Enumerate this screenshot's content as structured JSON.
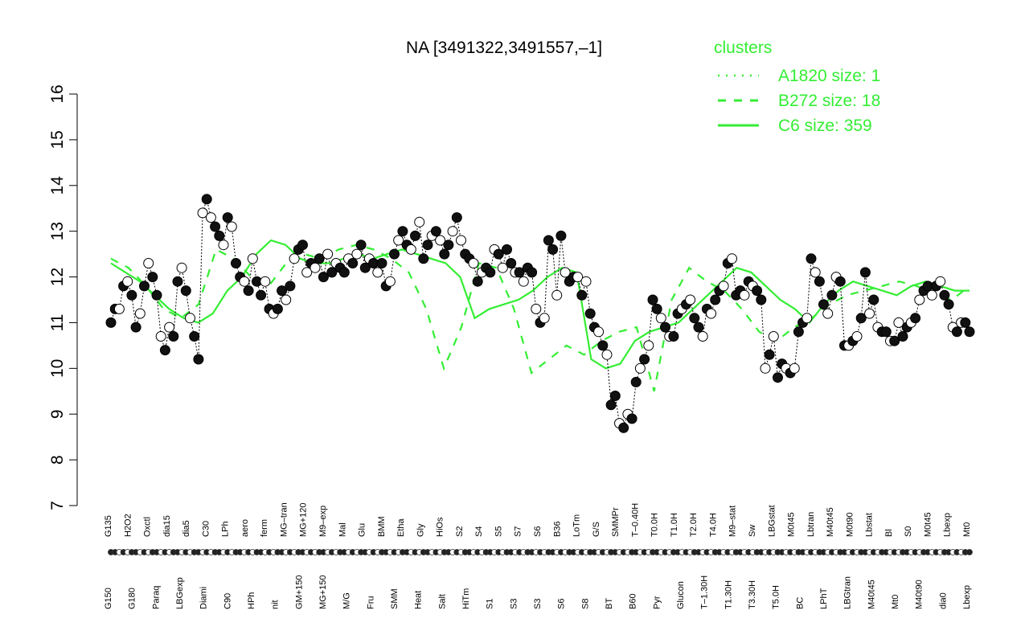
{
  "chart_data": {
    "type": "line",
    "title": "NA [3491322,3491557,–1]",
    "ylim": [
      7,
      16
    ],
    "y_ticks": [
      7,
      8,
      9,
      10,
      11,
      12,
      13,
      14,
      15,
      16
    ],
    "legend": {
      "title": "clusters",
      "placement": "top-right",
      "color": "#33ee33",
      "entries": [
        {
          "label": "A1820 size: 1",
          "style": "dotted"
        },
        {
          "label": "B272 size: 18",
          "style": "dashed"
        },
        {
          "label": "C6 size: 359",
          "style": "solid"
        }
      ]
    },
    "point_colors": {
      "filled": "#111111",
      "open": "#ffffff",
      "line": "#33ee33"
    },
    "x_tick_labels_top": [
      "G135",
      "H2O2",
      "Oxctl",
      "dia15",
      "dia5",
      "C30",
      "LPh",
      "aero",
      "ferm",
      "MG–tran",
      "MG+120",
      "M9–exp",
      "Mal",
      "Glu",
      "BMM",
      "Etha",
      "Gly",
      "HiOs",
      "S2",
      "S4",
      "S5",
      "S7",
      "S6",
      "B36",
      "LoTm",
      "G/S",
      "SMMPr",
      "T–0.40H",
      "T0.0H",
      "T1.0H",
      "T2.0H",
      "T4.0H",
      "M9–stat",
      "Sw",
      "LBGstat",
      "M0t45",
      "Lbtran",
      "M40t45",
      "M0t90",
      "Lbstat",
      "Bl",
      "S0",
      "M0t45",
      "Lbexp",
      "Mt0"
    ],
    "x_tick_labels_bottom": [
      "G150",
      "G180",
      "Paraq",
      "LBGexp",
      "Diami",
      "C90",
      "HPh",
      "nit",
      "GM+150",
      "MG+150",
      "M/G",
      "Fru",
      "SMM",
      "Heat",
      "Salt",
      "HiTm",
      "S1",
      "S3",
      "S3",
      "S6",
      "S8",
      "BT",
      "B60",
      "Pyr",
      "Glucon",
      "T–1.30H",
      "T1.30H",
      "T3.30H",
      "T5.0H",
      "BC",
      "LPhT",
      "LBGtran",
      "M40t45",
      "Mt0",
      "M40t90",
      "dia0",
      "Lbexp"
    ],
    "y_points": [
      11.0,
      11.3,
      11.3,
      11.8,
      11.9,
      11.6,
      10.9,
      11.2,
      11.8,
      12.3,
      12.0,
      11.6,
      10.7,
      10.4,
      10.9,
      10.7,
      11.9,
      12.2,
      11.7,
      11.1,
      10.7,
      10.2,
      13.4,
      13.7,
      13.3,
      13.1,
      12.9,
      12.7,
      13.3,
      13.1,
      12.3,
      12.0,
      11.9,
      11.7,
      12.4,
      11.9,
      11.6,
      11.9,
      11.3,
      11.2,
      11.3,
      11.7,
      11.5,
      11.8,
      12.4,
      12.6,
      12.7,
      12.1,
      12.3,
      12.2,
      12.4,
      12.0,
      12.5,
      12.1,
      12.3,
      12.2,
      12.1,
      12.4,
      12.3,
      12.5,
      12.7,
      12.2,
      12.4,
      12.3,
      12.1,
      12.3,
      11.8,
      11.9,
      12.5,
      12.8,
      13.0,
      12.7,
      12.6,
      12.9,
      13.2,
      12.4,
      12.7,
      12.9,
      13.0,
      12.8,
      12.5,
      12.7,
      13.0,
      13.3,
      12.8,
      12.5,
      12.4,
      12.3,
      11.9,
      12.1,
      12.2,
      12.1,
      12.6,
      12.5,
      12.2,
      12.6,
      12.3,
      12.1,
      12.1,
      11.9,
      12.2,
      12.1,
      11.3,
      11.0,
      11.1,
      12.8,
      12.6,
      11.6,
      12.9,
      12.1,
      11.9,
      12.0,
      12.0,
      11.6,
      11.9,
      11.2,
      10.9,
      10.8,
      10.5,
      10.3,
      9.2,
      9.4,
      8.8,
      8.7,
      9.0,
      8.9,
      9.7,
      10.0,
      10.2,
      10.5,
      11.5,
      11.3,
      11.1,
      10.9,
      10.7,
      10.7,
      11.2,
      11.3,
      11.4,
      11.5,
      11.1,
      10.9,
      10.7,
      11.3,
      11.2,
      11.5,
      11.7,
      11.8,
      12.3,
      12.4,
      11.6,
      11.7,
      11.6,
      11.9,
      11.8,
      11.7,
      11.5,
      10.0,
      10.3,
      10.7,
      9.8,
      10.1,
      10.0,
      9.9,
      10.0,
      10.8,
      11.0,
      11.1,
      12.4,
      12.1,
      11.9,
      11.4,
      11.2,
      11.6,
      12.0,
      11.9,
      10.5,
      10.5,
      10.6,
      10.7,
      11.1,
      12.1,
      11.2,
      11.5,
      10.9,
      10.8,
      10.8,
      10.6,
      10.6,
      11.0,
      10.7,
      10.9,
      11.0,
      11.1,
      11.5,
      11.7,
      11.8,
      11.6,
      11.8,
      11.9,
      11.6,
      11.4,
      10.9,
      10.8,
      11.0,
      11.0,
      10.8
    ],
    "cluster_line_C6": [
      12.3,
      12.1,
      11.9,
      11.6,
      11.3,
      11.1,
      11.0,
      11.2,
      11.7,
      12.0,
      12.5,
      12.8,
      12.7,
      12.4,
      12.3,
      12.3,
      12.4,
      12.5,
      12.4,
      12.5,
      12.6,
      12.5,
      12.4,
      12.3,
      12.0,
      11.1,
      11.3,
      11.4,
      11.5,
      11.7,
      12.0,
      12.2,
      12.1,
      10.2,
      10.0,
      10.1,
      10.6,
      10.8,
      10.9,
      11.0,
      11.3,
      11.6,
      11.9,
      12.2,
      12.1,
      11.8,
      11.5,
      11.3,
      11.0,
      11.4,
      11.7,
      11.9,
      11.8,
      11.7,
      11.6,
      11.8,
      11.9,
      11.8,
      11.7,
      11.7
    ],
    "cluster_line_B272": [
      12.4,
      12.2,
      11.8,
      11.3,
      11.1,
      11.4,
      12.6,
      12.4,
      12.0,
      11.8,
      12.3,
      12.5,
      12.4,
      12.6,
      12.7,
      12.6,
      12.4,
      12.1,
      11.3,
      10.0,
      10.9,
      12.3,
      12.2,
      11.3,
      9.9,
      10.2,
      10.5,
      10.3,
      10.6,
      10.8,
      10.9,
      9.5,
      11.5,
      12.2,
      11.9,
      11.7,
      11.3,
      10.8,
      10.6,
      10.9,
      11.1,
      11.4,
      11.6,
      11.7,
      11.8,
      11.9,
      11.8,
      11.6,
      11.5,
      11.8
    ]
  }
}
